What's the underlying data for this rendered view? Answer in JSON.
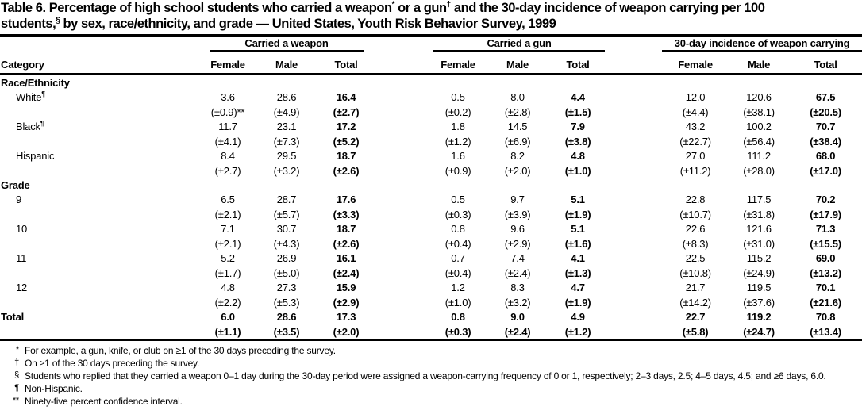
{
  "colors": {
    "text": "#000000",
    "background": "#ffffff",
    "rule": "#000000"
  },
  "title": {
    "line1_a": "Table 6. Percentage of high school students who carried a weapon",
    "line1_sup1": "*",
    "line1_b": " or a gun",
    "line1_sup2": "†",
    "line1_c": " and the 30-day incidence of weapon carrying per 100",
    "line2_a": "students,",
    "line2_sup": "§",
    "line2_b": " by sex, race/ethnicity, and grade — United States, Youth Risk Behavior Survey, 1999"
  },
  "table": {
    "category_header": "Category",
    "groups": [
      {
        "label": "Carried a weapon"
      },
      {
        "label": "Carried a gun"
      },
      {
        "label": "30-day incidence of weapon carrying"
      }
    ],
    "sub_headers": [
      "Female",
      "Male",
      "Total"
    ],
    "sections": [
      {
        "label": "Race/Ethnicity",
        "rows": [
          {
            "category": "White",
            "sup": "¶",
            "values": [
              "3.6",
              "28.6",
              "16.4",
              "0.5",
              "8.0",
              "4.4",
              "12.0",
              "120.6",
              "67.5"
            ],
            "ci": [
              "(±0.9)**",
              "(±4.9)",
              "(±2.7)",
              "(±0.2)",
              "(±2.8)",
              "(±1.5)",
              "(±4.4)",
              "(±38.1)",
              "(±20.5)"
            ]
          },
          {
            "category": "Black",
            "sup": "¶",
            "values": [
              "11.7",
              "23.1",
              "17.2",
              "1.8",
              "14.5",
              "7.9",
              "43.2",
              "100.2",
              "70.7"
            ],
            "ci": [
              "(±4.1)",
              "(±7.3)",
              "(±5.2)",
              "(±1.2)",
              "(±6.9)",
              "(±3.8)",
              "(±22.7)",
              "(±56.4)",
              "(±38.4)"
            ]
          },
          {
            "category": "Hispanic",
            "sup": "",
            "values": [
              "8.4",
              "29.5",
              "18.7",
              "1.6",
              "8.2",
              "4.8",
              "27.0",
              "111.2",
              "68.0"
            ],
            "ci": [
              "(±2.7)",
              "(±3.2)",
              "(±2.6)",
              "(±0.9)",
              "(±2.0)",
              "(±1.0)",
              "(±11.2)",
              "(±28.0)",
              "(±17.0)"
            ]
          }
        ]
      },
      {
        "label": "Grade",
        "rows": [
          {
            "category": "9",
            "sup": "",
            "values": [
              "6.5",
              "28.7",
              "17.6",
              "0.5",
              "9.7",
              "5.1",
              "22.8",
              "117.5",
              "70.2"
            ],
            "ci": [
              "(±2.1)",
              "(±5.7)",
              "(±3.3)",
              "(±0.3)",
              "(±3.9)",
              "(±1.9)",
              "(±10.7)",
              "(±31.8)",
              "(±17.9)"
            ]
          },
          {
            "category": "10",
            "sup": "",
            "values": [
              "7.1",
              "30.7",
              "18.7",
              "0.8",
              "9.6",
              "5.1",
              "22.6",
              "121.6",
              "71.3"
            ],
            "ci": [
              "(±2.1)",
              "(±4.3)",
              "(±2.6)",
              "(±0.4)",
              "(±2.9)",
              "(±1.6)",
              "(±8.3)",
              "(±31.0)",
              "(±15.5)"
            ]
          },
          {
            "category": "11",
            "sup": "",
            "values": [
              "5.2",
              "26.9",
              "16.1",
              "0.7",
              "7.4",
              "4.1",
              "22.5",
              "115.2",
              "69.0"
            ],
            "ci": [
              "(±1.7)",
              "(±5.0)",
              "(±2.4)",
              "(±0.4)",
              "(±2.4)",
              "(±1.3)",
              "(±10.8)",
              "(±24.9)",
              "(±13.2)"
            ]
          },
          {
            "category": "12",
            "sup": "",
            "values": [
              "4.8",
              "27.3",
              "15.9",
              "1.2",
              "8.3",
              "4.7",
              "21.7",
              "119.5",
              "70.1"
            ],
            "ci": [
              "(±2.2)",
              "(±5.3)",
              "(±2.9)",
              "(±1.0)",
              "(±3.2)",
              "(±1.9)",
              "(±14.2)",
              "(±37.6)",
              "(±21.6)"
            ]
          }
        ]
      }
    ],
    "total_row": {
      "category": "Total",
      "sup": "",
      "values": [
        "6.0",
        "28.6",
        "17.3",
        "0.8",
        "9.0",
        "4.9",
        "22.7",
        "119.2",
        "70.8"
      ],
      "ci": [
        "(±1.1)",
        "(±3.5)",
        "(±2.0)",
        "(±0.3)",
        "(±2.4)",
        "(±1.2)",
        "(±5.8)",
        "(±24.7)",
        "(±13.4)"
      ]
    }
  },
  "footnotes": [
    {
      "marker": "*",
      "text": "For example, a gun, knife, or club on ≥1 of the 30 days preceding the survey."
    },
    {
      "marker": "†",
      "text": "On ≥1 of the 30 days preceding the survey."
    },
    {
      "marker": "§",
      "text": "Students who replied that they carried a weapon 0–1 day during the 30-day period were assigned a weapon-carrying frequency of 0 or 1, respectively; 2–3 days, 2.5; 4–5 days, 4.5; and ≥6 days, 6.0."
    },
    {
      "marker": "¶",
      "text": "Non-Hispanic."
    },
    {
      "marker": "**",
      "text": "Ninety-five percent confidence interval."
    }
  ]
}
